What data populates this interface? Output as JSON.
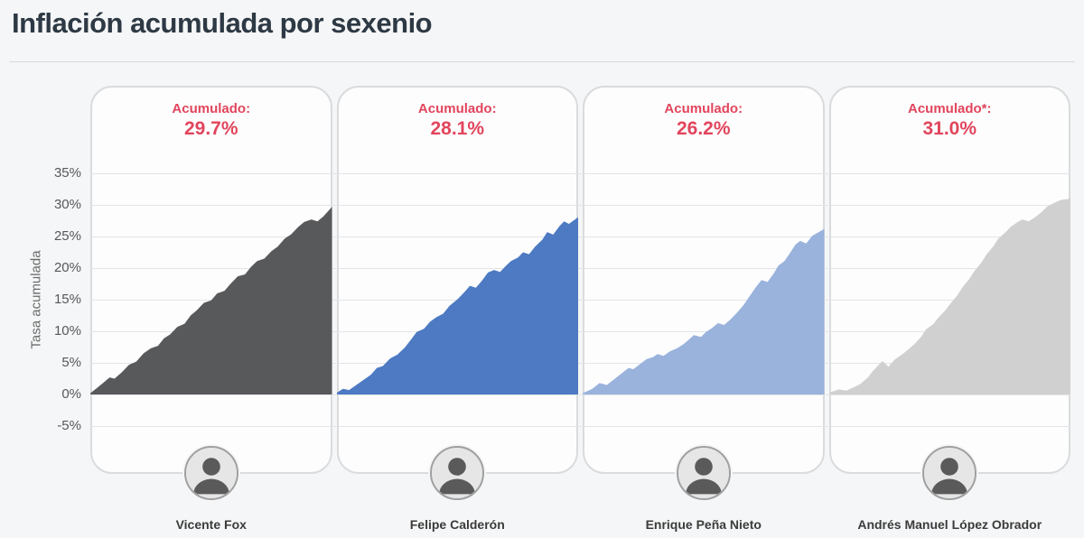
{
  "page": {
    "title": "Inflación acumulada por sexenio",
    "background_color": "#f5f6f7",
    "title_color": "#2d3944",
    "accent_red": "#e2455c"
  },
  "y_axis": {
    "title": "Tasa acumulada",
    "ticks": [
      "35%",
      "30%",
      "25%",
      "20%",
      "15%",
      "10%",
      "5%",
      "0%",
      "-5%"
    ]
  },
  "chart_data": {
    "type": "area",
    "unit": "%",
    "ylabel": "Tasa acumulada",
    "ylim": [
      -5,
      35
    ],
    "grid": true,
    "x_unit": "fraction_of_term",
    "panels": [
      {
        "president": "Vicente Fox",
        "accumulated_label": "Acumulado:",
        "accumulated_value": "29.7%",
        "final_value": 29.7,
        "color": "#58595b",
        "points": [
          [
            0,
            0.2
          ],
          [
            0.03,
            1.1
          ],
          [
            0.055,
            1.9
          ],
          [
            0.08,
            2.7
          ],
          [
            0.1,
            2.5
          ],
          [
            0.13,
            3.5
          ],
          [
            0.16,
            4.7
          ],
          [
            0.19,
            5.2
          ],
          [
            0.22,
            6.5
          ],
          [
            0.25,
            7.3
          ],
          [
            0.28,
            7.7
          ],
          [
            0.305,
            8.9
          ],
          [
            0.33,
            9.5
          ],
          [
            0.36,
            10.7
          ],
          [
            0.39,
            11.2
          ],
          [
            0.415,
            12.5
          ],
          [
            0.44,
            13.3
          ],
          [
            0.47,
            14.5
          ],
          [
            0.5,
            14.9
          ],
          [
            0.525,
            16.0
          ],
          [
            0.555,
            16.4
          ],
          [
            0.58,
            17.5
          ],
          [
            0.61,
            18.7
          ],
          [
            0.64,
            19.0
          ],
          [
            0.665,
            20.2
          ],
          [
            0.69,
            21.1
          ],
          [
            0.72,
            21.5
          ],
          [
            0.75,
            22.7
          ],
          [
            0.775,
            23.4
          ],
          [
            0.805,
            24.7
          ],
          [
            0.83,
            25.3
          ],
          [
            0.86,
            26.5
          ],
          [
            0.885,
            27.3
          ],
          [
            0.915,
            27.7
          ],
          [
            0.94,
            27.4
          ],
          [
            0.965,
            28.2
          ],
          [
            1,
            29.7
          ]
        ]
      },
      {
        "president": "Felipe Calderón",
        "accumulated_label": "Acumulado:",
        "accumulated_value": "28.1%",
        "final_value": 28.1,
        "color": "#4d7ac2",
        "points": [
          [
            0,
            0.3
          ],
          [
            0.025,
            0.9
          ],
          [
            0.05,
            0.7
          ],
          [
            0.08,
            1.5
          ],
          [
            0.11,
            2.3
          ],
          [
            0.14,
            3.1
          ],
          [
            0.165,
            4.2
          ],
          [
            0.19,
            4.5
          ],
          [
            0.22,
            5.7
          ],
          [
            0.25,
            6.3
          ],
          [
            0.28,
            7.4
          ],
          [
            0.305,
            8.6
          ],
          [
            0.33,
            9.9
          ],
          [
            0.36,
            10.4
          ],
          [
            0.385,
            11.5
          ],
          [
            0.41,
            12.2
          ],
          [
            0.44,
            12.8
          ],
          [
            0.465,
            14.0
          ],
          [
            0.5,
            15.1
          ],
          [
            0.53,
            16.3
          ],
          [
            0.55,
            17.2
          ],
          [
            0.575,
            16.9
          ],
          [
            0.6,
            18.0
          ],
          [
            0.625,
            19.3
          ],
          [
            0.65,
            19.7
          ],
          [
            0.675,
            19.4
          ],
          [
            0.7,
            20.4
          ],
          [
            0.72,
            21.1
          ],
          [
            0.75,
            21.7
          ],
          [
            0.77,
            22.5
          ],
          [
            0.795,
            22.2
          ],
          [
            0.82,
            23.4
          ],
          [
            0.85,
            24.5
          ],
          [
            0.87,
            25.7
          ],
          [
            0.895,
            25.3
          ],
          [
            0.92,
            26.6
          ],
          [
            0.94,
            27.4
          ],
          [
            0.96,
            27.0
          ],
          [
            1,
            28.1
          ]
        ]
      },
      {
        "president": "Enrique Peña Nieto",
        "accumulated_label": "Acumulado:",
        "accumulated_value": "26.2%",
        "final_value": 26.2,
        "color": "#9ab3dc",
        "points": [
          [
            0,
            0.2
          ],
          [
            0.04,
            0.9
          ],
          [
            0.07,
            1.8
          ],
          [
            0.1,
            1.5
          ],
          [
            0.13,
            2.4
          ],
          [
            0.16,
            3.3
          ],
          [
            0.19,
            4.2
          ],
          [
            0.21,
            4.0
          ],
          [
            0.24,
            4.9
          ],
          [
            0.265,
            5.6
          ],
          [
            0.29,
            5.9
          ],
          [
            0.31,
            6.4
          ],
          [
            0.335,
            6.1
          ],
          [
            0.36,
            6.8
          ],
          [
            0.39,
            7.3
          ],
          [
            0.415,
            7.9
          ],
          [
            0.44,
            8.7
          ],
          [
            0.46,
            9.4
          ],
          [
            0.49,
            9.1
          ],
          [
            0.51,
            9.9
          ],
          [
            0.535,
            10.5
          ],
          [
            0.56,
            11.3
          ],
          [
            0.585,
            11.0
          ],
          [
            0.61,
            11.8
          ],
          [
            0.64,
            13.0
          ],
          [
            0.665,
            14.1
          ],
          [
            0.69,
            15.5
          ],
          [
            0.715,
            16.9
          ],
          [
            0.74,
            18.1
          ],
          [
            0.765,
            17.8
          ],
          [
            0.79,
            19.1
          ],
          [
            0.81,
            20.4
          ],
          [
            0.835,
            21.1
          ],
          [
            0.86,
            22.5
          ],
          [
            0.88,
            23.7
          ],
          [
            0.9,
            24.3
          ],
          [
            0.925,
            23.9
          ],
          [
            0.95,
            25.1
          ],
          [
            1,
            26.2
          ]
        ]
      },
      {
        "president": "Andrés Manuel López Obrador",
        "accumulated_label": "Acumulado*:",
        "accumulated_value": "31.0%",
        "final_value": 31.0,
        "color": "#d1d0d1",
        "points": [
          [
            0,
            0.3
          ],
          [
            0.04,
            0.8
          ],
          [
            0.07,
            0.6
          ],
          [
            0.1,
            1.1
          ],
          [
            0.13,
            1.7
          ],
          [
            0.16,
            2.7
          ],
          [
            0.18,
            3.7
          ],
          [
            0.2,
            4.5
          ],
          [
            0.22,
            5.3
          ],
          [
            0.245,
            4.4
          ],
          [
            0.27,
            5.5
          ],
          [
            0.3,
            6.3
          ],
          [
            0.32,
            6.9
          ],
          [
            0.35,
            7.9
          ],
          [
            0.38,
            9.1
          ],
          [
            0.4,
            10.3
          ],
          [
            0.43,
            11.1
          ],
          [
            0.45,
            12.1
          ],
          [
            0.48,
            13.3
          ],
          [
            0.5,
            14.3
          ],
          [
            0.53,
            15.7
          ],
          [
            0.55,
            16.9
          ],
          [
            0.58,
            18.3
          ],
          [
            0.6,
            19.5
          ],
          [
            0.63,
            20.9
          ],
          [
            0.65,
            22.1
          ],
          [
            0.68,
            23.5
          ],
          [
            0.7,
            24.7
          ],
          [
            0.73,
            25.7
          ],
          [
            0.75,
            26.5
          ],
          [
            0.78,
            27.3
          ],
          [
            0.8,
            27.7
          ],
          [
            0.825,
            27.4
          ],
          [
            0.85,
            28.0
          ],
          [
            0.88,
            28.9
          ],
          [
            0.9,
            29.7
          ],
          [
            0.93,
            30.3
          ],
          [
            0.96,
            30.8
          ],
          [
            1,
            31.0
          ]
        ]
      }
    ]
  }
}
